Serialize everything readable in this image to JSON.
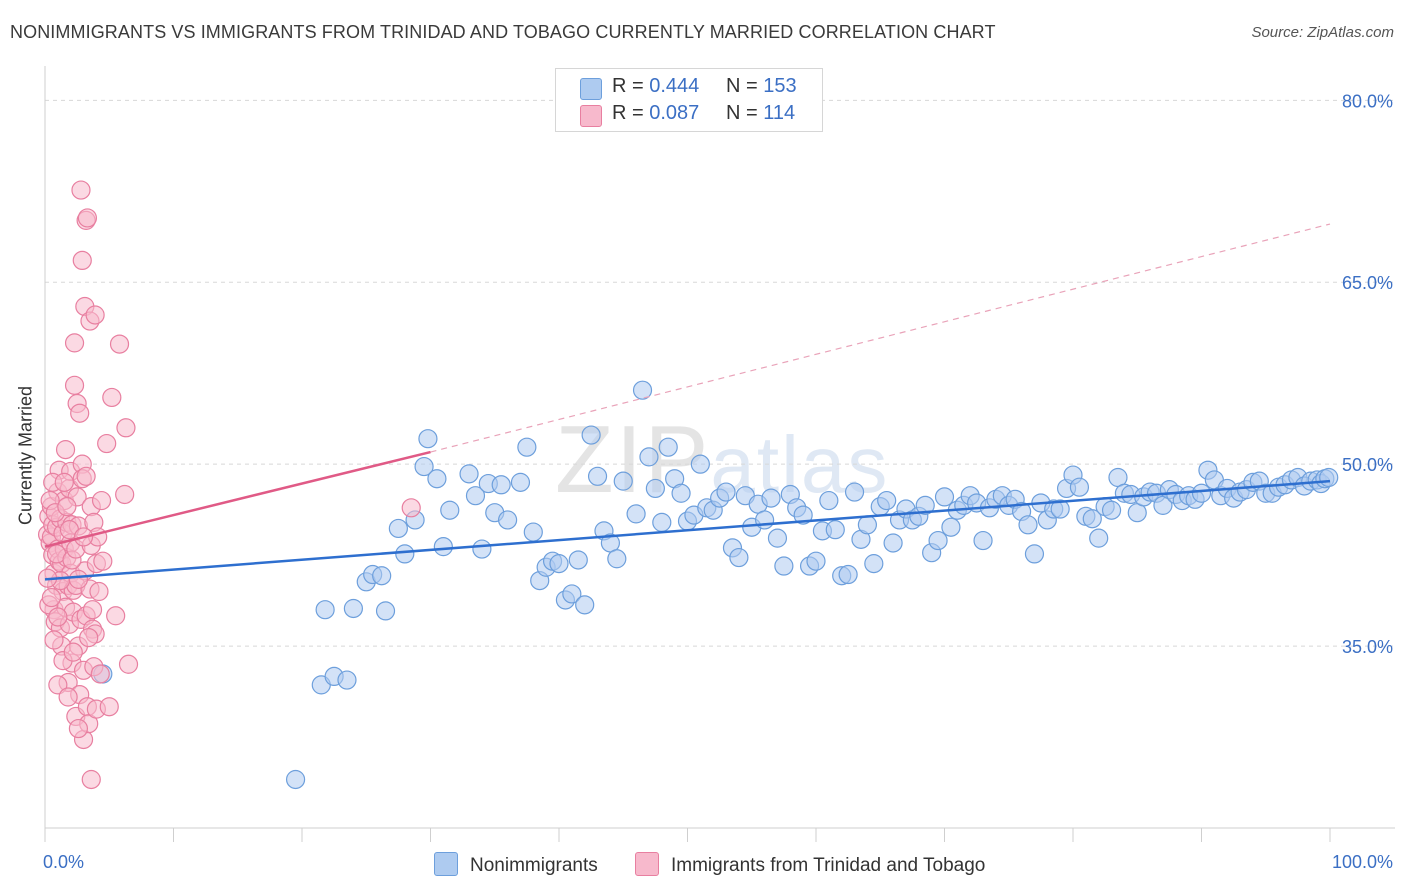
{
  "title": "NONIMMIGRANTS VS IMMIGRANTS FROM TRINIDAD AND TOBAGO CURRENTLY MARRIED CORRELATION CHART",
  "source": "Source: ZipAtlas.com",
  "watermark": {
    "part1": "ZIP",
    "part2": "atlas"
  },
  "legend_top": {
    "rows": [
      {
        "r_label": "R =",
        "r_value": "0.444",
        "n_label": "N =",
        "n_value": "153",
        "color": "#aecbf0"
      },
      {
        "r_label": "R =",
        "r_value": "0.087",
        "n_label": "N =",
        "n_value": "114",
        "color": "#f7b9cc"
      }
    ]
  },
  "chart_data": {
    "type": "scatter",
    "ylabel": "Currently Married",
    "xlim": [
      0,
      100
    ],
    "ylim": [
      20,
      82.5
    ],
    "x_tick_labels": [
      "0.0%",
      "100.0%"
    ],
    "y_ticks": [
      35,
      50,
      65,
      80
    ],
    "y_tick_labels": [
      "35.0%",
      "50.0%",
      "65.0%",
      "80.0%"
    ],
    "grid": true,
    "legend_position": "bottom",
    "series": [
      {
        "name": "Nonimmigrants",
        "color": "#aecbf0",
        "stroke": "#6d9fdc",
        "trend": {
          "x": [
            0,
            100
          ],
          "y": [
            40.5,
            48.6
          ],
          "color": "#2e6fcf"
        },
        "points": [
          [
            4.5,
            32.7
          ],
          [
            19.5,
            24
          ],
          [
            21.5,
            31.8
          ],
          [
            21.8,
            38
          ],
          [
            22.5,
            32.5
          ],
          [
            23.5,
            32.2
          ],
          [
            24,
            38.1
          ],
          [
            25,
            40.3
          ],
          [
            25.5,
            40.9
          ],
          [
            26.2,
            40.8
          ],
          [
            26.5,
            37.9
          ],
          [
            27.5,
            44.7
          ],
          [
            28,
            42.6
          ],
          [
            28.8,
            45.4
          ],
          [
            29.5,
            49.8
          ],
          [
            29.8,
            52.1
          ],
          [
            30.5,
            48.8
          ],
          [
            31,
            43.2
          ],
          [
            31.5,
            46.2
          ],
          [
            33,
            49.2
          ],
          [
            33.5,
            47.4
          ],
          [
            34,
            43
          ],
          [
            34.5,
            48.4
          ],
          [
            35,
            46
          ],
          [
            35.5,
            48.3
          ],
          [
            36,
            45.4
          ],
          [
            37,
            48.5
          ],
          [
            37.5,
            51.4
          ],
          [
            38,
            44.4
          ],
          [
            38.5,
            40.4
          ],
          [
            39,
            41.5
          ],
          [
            39.5,
            42
          ],
          [
            40,
            41.8
          ],
          [
            40.5,
            38.8
          ],
          [
            41,
            39.3
          ],
          [
            41.5,
            42.1
          ],
          [
            42,
            38.4
          ],
          [
            42.5,
            52.4
          ],
          [
            43,
            49
          ],
          [
            43.5,
            44.5
          ],
          [
            44,
            43.5
          ],
          [
            44.5,
            42.2
          ],
          [
            45,
            48.6
          ],
          [
            46,
            45.9
          ],
          [
            46.5,
            56.1
          ],
          [
            47,
            50.6
          ],
          [
            47.5,
            48
          ],
          [
            48,
            45.2
          ],
          [
            48.5,
            51.4
          ],
          [
            49,
            48.8
          ],
          [
            49.5,
            47.6
          ],
          [
            50,
            45.3
          ],
          [
            50.5,
            45.8
          ],
          [
            51,
            50
          ],
          [
            51.5,
            46.4
          ],
          [
            52,
            46.2
          ],
          [
            52.5,
            47.2
          ],
          [
            53,
            47.7
          ],
          [
            53.5,
            43.1
          ],
          [
            54,
            42.3
          ],
          [
            54.5,
            47.4
          ],
          [
            55,
            44.8
          ],
          [
            55.5,
            46.7
          ],
          [
            56,
            45.4
          ],
          [
            56.5,
            47.2
          ],
          [
            57,
            43.9
          ],
          [
            57.5,
            41.6
          ],
          [
            58,
            47.5
          ],
          [
            58.5,
            46.4
          ],
          [
            59,
            45.8
          ],
          [
            59.5,
            41.6
          ],
          [
            60,
            42
          ],
          [
            60.5,
            44.5
          ],
          [
            61,
            47
          ],
          [
            61.5,
            44.6
          ],
          [
            62,
            40.8
          ],
          [
            62.5,
            40.9
          ],
          [
            63,
            47.7
          ],
          [
            63.5,
            43.8
          ],
          [
            64,
            45
          ],
          [
            64.5,
            41.8
          ],
          [
            65,
            46.5
          ],
          [
            65.5,
            47
          ],
          [
            66,
            43.5
          ],
          [
            66.5,
            45.4
          ],
          [
            67,
            46.3
          ],
          [
            67.5,
            45.4
          ],
          [
            68,
            45.7
          ],
          [
            68.5,
            46.6
          ],
          [
            69,
            42.7
          ],
          [
            69.5,
            43.7
          ],
          [
            70,
            47.3
          ],
          [
            70.5,
            44.8
          ],
          [
            71,
            46.2
          ],
          [
            71.5,
            46.6
          ],
          [
            72,
            47.4
          ],
          [
            72.5,
            46.8
          ],
          [
            73,
            43.7
          ],
          [
            73.5,
            46.4
          ],
          [
            74,
            47.1
          ],
          [
            74.5,
            47.4
          ],
          [
            75,
            46.6
          ],
          [
            75.5,
            47.1
          ],
          [
            76,
            46.1
          ],
          [
            76.5,
            45
          ],
          [
            77,
            42.6
          ],
          [
            77.5,
            46.8
          ],
          [
            78,
            45.4
          ],
          [
            78.5,
            46.3
          ],
          [
            79,
            46.3
          ],
          [
            79.5,
            48
          ],
          [
            80,
            49.1
          ],
          [
            80.5,
            48.1
          ],
          [
            81,
            45.7
          ],
          [
            81.5,
            45.5
          ],
          [
            82,
            43.9
          ],
          [
            82.5,
            46.5
          ],
          [
            83,
            46.2
          ],
          [
            83.5,
            48.9
          ],
          [
            84,
            47.6
          ],
          [
            84.5,
            47.5
          ],
          [
            85,
            46
          ],
          [
            85.5,
            47.3
          ],
          [
            86,
            47.7
          ],
          [
            86.5,
            47.6
          ],
          [
            87,
            46.6
          ],
          [
            87.5,
            47.9
          ],
          [
            88,
            47.5
          ],
          [
            88.5,
            47
          ],
          [
            89,
            47.4
          ],
          [
            89.5,
            47.1
          ],
          [
            90,
            47.6
          ],
          [
            90.5,
            49.5
          ],
          [
            91,
            48.7
          ],
          [
            91.5,
            47.4
          ],
          [
            92,
            48
          ],
          [
            92.5,
            47.2
          ],
          [
            93,
            47.7
          ],
          [
            93.5,
            47.9
          ],
          [
            94,
            48.5
          ],
          [
            94.5,
            48.6
          ],
          [
            95,
            47.6
          ],
          [
            95.5,
            47.6
          ],
          [
            96,
            48.1
          ],
          [
            96.5,
            48.3
          ],
          [
            97,
            48.7
          ],
          [
            97.5,
            48.9
          ],
          [
            98,
            48.2
          ],
          [
            98.5,
            48.6
          ],
          [
            99,
            48.7
          ],
          [
            99.3,
            48.4
          ],
          [
            99.6,
            48.8
          ],
          [
            99.9,
            48.9
          ]
        ]
      },
      {
        "name": "Immigrants from Trinidad and Tobago",
        "color": "#f7b9cc",
        "stroke": "#e87fa0",
        "trend": {
          "x": [
            0,
            30
          ],
          "y": [
            43.2,
            51
          ],
          "color": "#e05a86"
        },
        "trend_extended": {
          "x": [
            30,
            100
          ],
          "y": [
            51,
            69.8
          ],
          "color": "#e9a3b9"
        },
        "points": [
          [
            0.2,
            44.2
          ],
          [
            0.3,
            45.7
          ],
          [
            0.4,
            43.5
          ],
          [
            0.5,
            46.5
          ],
          [
            0.5,
            44
          ],
          [
            0.6,
            42.5
          ],
          [
            0.6,
            45
          ],
          [
            0.7,
            41
          ],
          [
            0.7,
            38
          ],
          [
            0.8,
            37
          ],
          [
            0.9,
            40
          ],
          [
            0.9,
            44.8
          ],
          [
            1,
            43
          ],
          [
            1,
            47.7
          ],
          [
            1.1,
            42
          ],
          [
            1.1,
            49.5
          ],
          [
            1.2,
            45.5
          ],
          [
            1.2,
            36.5
          ],
          [
            1.3,
            35
          ],
          [
            1.3,
            41.8
          ],
          [
            1.4,
            44.3
          ],
          [
            1.4,
            39.5
          ],
          [
            1.5,
            47
          ],
          [
            1.5,
            43
          ],
          [
            1.6,
            51.2
          ],
          [
            1.6,
            38.2
          ],
          [
            1.7,
            42.3
          ],
          [
            1.7,
            45.2
          ],
          [
            1.8,
            40
          ],
          [
            1.8,
            32
          ],
          [
            1.9,
            36.8
          ],
          [
            1.9,
            48
          ],
          [
            2,
            49.4
          ],
          [
            2,
            43.5
          ],
          [
            2,
            41
          ],
          [
            2.1,
            33.6
          ],
          [
            2.1,
            45
          ],
          [
            2.2,
            39.6
          ],
          [
            2.2,
            37.8
          ],
          [
            2.3,
            60
          ],
          [
            2.3,
            56.5
          ],
          [
            2.4,
            29.2
          ],
          [
            2.4,
            40
          ],
          [
            2.5,
            55
          ],
          [
            2.5,
            47.3
          ],
          [
            2.6,
            44.9
          ],
          [
            2.6,
            35
          ],
          [
            2.7,
            54.2
          ],
          [
            2.7,
            31
          ],
          [
            2.8,
            72.6
          ],
          [
            2.8,
            37.2
          ],
          [
            2.9,
            66.8
          ],
          [
            2.9,
            50
          ],
          [
            3,
            27.3
          ],
          [
            3,
            33
          ],
          [
            3.1,
            63
          ],
          [
            3.1,
            41.2
          ],
          [
            3.2,
            70.1
          ],
          [
            3.2,
            37.5
          ],
          [
            3.3,
            70.3
          ],
          [
            3.3,
            30
          ],
          [
            3.4,
            28.6
          ],
          [
            3.5,
            61.8
          ],
          [
            3.5,
            39.7
          ],
          [
            3.6,
            24
          ],
          [
            3.6,
            46.5
          ],
          [
            3.7,
            36.4
          ],
          [
            3.8,
            45.2
          ],
          [
            3.8,
            33.3
          ],
          [
            3.9,
            62.3
          ],
          [
            4,
            41.8
          ],
          [
            4,
            29.8
          ],
          [
            4.2,
            39.5
          ],
          [
            4.3,
            32.7
          ],
          [
            4.5,
            42
          ],
          [
            4.8,
            51.7
          ],
          [
            5,
            30
          ],
          [
            5.2,
            55.5
          ],
          [
            5.5,
            37.5
          ],
          [
            5.8,
            59.9
          ],
          [
            6.2,
            47.5
          ],
          [
            6.3,
            53
          ],
          [
            6.5,
            33.5
          ],
          [
            28.5,
            46.4
          ],
          [
            0.3,
            38.4
          ],
          [
            0.4,
            47
          ],
          [
            0.6,
            48.5
          ],
          [
            0.8,
            46
          ],
          [
            0.9,
            42.6
          ],
          [
            1.0,
            37.4
          ],
          [
            1.2,
            40.4
          ],
          [
            1.5,
            48.5
          ],
          [
            1.7,
            46.5
          ],
          [
            1.9,
            44.6
          ],
          [
            2.1,
            42.1
          ],
          [
            2.4,
            43
          ],
          [
            2.6,
            40.5
          ],
          [
            2.9,
            48.8
          ],
          [
            3.2,
            49
          ],
          [
            3.6,
            43.3
          ],
          [
            3.9,
            36
          ],
          [
            4.1,
            44
          ],
          [
            4.4,
            47
          ],
          [
            0.2,
            40.6
          ],
          [
            0.5,
            39
          ],
          [
            0.7,
            35.5
          ],
          [
            1.0,
            31.8
          ],
          [
            1.4,
            33.8
          ],
          [
            1.8,
            30.8
          ],
          [
            2.2,
            34.5
          ],
          [
            2.6,
            28.2
          ],
          [
            3.0,
            44
          ],
          [
            3.4,
            35.7
          ],
          [
            3.7,
            38
          ]
        ]
      }
    ]
  }
}
